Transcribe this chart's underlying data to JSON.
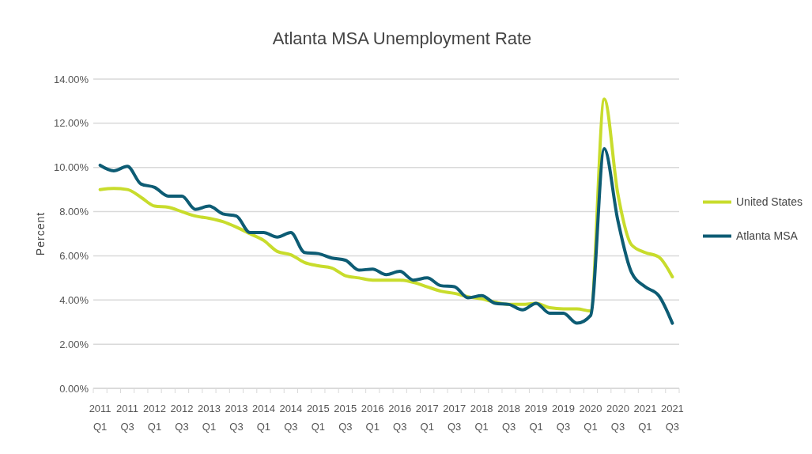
{
  "chart_data": {
    "type": "line",
    "title": "Atlanta MSA Unemployment Rate",
    "ylabel": "Percent",
    "categories": [
      "2011 Q1",
      null,
      "2011 Q3",
      null,
      "2012 Q1",
      null,
      "2012 Q3",
      null,
      "2013 Q1",
      null,
      "2013 Q3",
      null,
      "2014 Q1",
      null,
      "2014 Q3",
      null,
      "2015 Q1",
      null,
      "2015 Q3",
      null,
      "2016 Q1",
      null,
      "2016 Q3",
      null,
      "2017 Q1",
      null,
      "2017 Q3",
      null,
      "2018 Q1",
      null,
      "2018 Q3",
      null,
      "2019 Q1",
      null,
      "2019 Q3",
      null,
      "2020 Q1",
      null,
      "2020 Q3",
      null,
      "2021 Q1",
      null,
      "2021 Q3"
    ],
    "series": [
      {
        "name": "United States",
        "color": "#c8dc2c",
        "values": [
          9.0,
          9.05,
          9.0,
          8.65,
          8.25,
          8.2,
          8.0,
          7.8,
          7.7,
          7.55,
          7.3,
          7.0,
          6.7,
          6.2,
          6.05,
          5.7,
          5.55,
          5.45,
          5.1,
          5.0,
          4.9,
          4.9,
          4.9,
          4.8,
          4.6,
          4.4,
          4.3,
          4.15,
          4.05,
          3.9,
          3.8,
          3.8,
          3.85,
          3.65,
          3.6,
          3.6,
          3.5,
          13.1,
          8.8,
          6.5,
          6.15,
          5.95,
          5.05
        ]
      },
      {
        "name": "Atlanta MSA",
        "color": "#0d5c74",
        "values": [
          10.1,
          9.85,
          10.05,
          9.25,
          9.1,
          8.7,
          8.7,
          8.1,
          8.25,
          7.9,
          7.8,
          7.05,
          7.05,
          6.85,
          7.05,
          6.15,
          6.1,
          5.9,
          5.8,
          5.35,
          5.4,
          5.15,
          5.3,
          4.9,
          5.0,
          4.65,
          4.6,
          4.1,
          4.2,
          3.85,
          3.8,
          3.55,
          3.85,
          3.4,
          3.4,
          2.95,
          3.3,
          10.85,
          7.6,
          5.25,
          4.6,
          4.2,
          2.95
        ]
      }
    ],
    "ylim": [
      0,
      14
    ],
    "yticks": [
      {
        "value": 0,
        "label": "0.00%"
      },
      {
        "value": 2,
        "label": "2.00%"
      },
      {
        "value": 4,
        "label": "4.00%"
      },
      {
        "value": 6,
        "label": "6.00%"
      },
      {
        "value": 8,
        "label": "8.00%"
      },
      {
        "value": 10,
        "label": "10.00%"
      },
      {
        "value": 12,
        "label": "12.00%"
      },
      {
        "value": 14,
        "label": "14.00%"
      }
    ],
    "grid": "y",
    "legend": "right",
    "line_style": "solid"
  }
}
